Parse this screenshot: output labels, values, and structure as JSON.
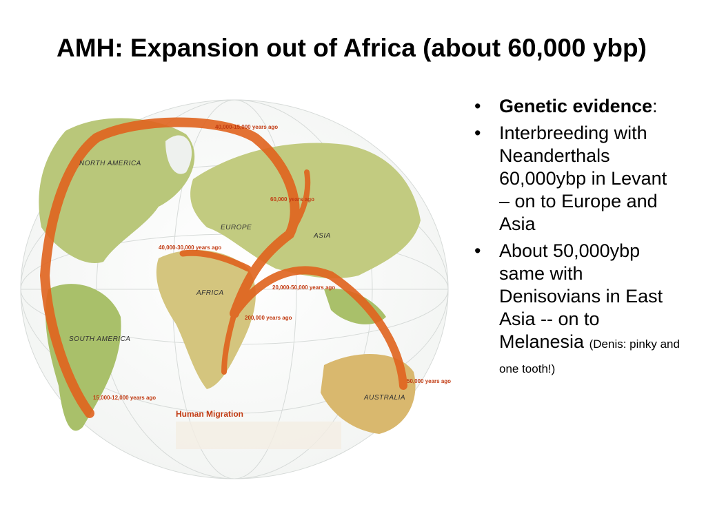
{
  "title": "AMH: Expansion out of Africa (about 60,000 ybp)",
  "bullets": [
    {
      "strong": "Genetic evidence",
      "rest": ":"
    },
    {
      "text": "Interbreeding with Neanderthals 60,000ybp in Levant – on to Europe and Asia"
    },
    {
      "text": "About 50,000ybp same with Denisovians in East Asia --  on to Melanesia",
      "note": "(Denis: pinky and one tooth!)"
    }
  ],
  "map": {
    "regions": [
      "NORTH AMERICA",
      "SOUTH AMERICA",
      "EUROPE",
      "ASIA",
      "AFRICA",
      "AUSTRALIA"
    ],
    "dates": [
      "40,000-15,000 years ago",
      "60,000 years ago",
      "40,000-30,000 years ago",
      "20,000-50,000 years ago",
      "200,000 years ago",
      "50,000 years ago",
      "15,000-12,000 years ago"
    ],
    "legend_title": "Human Migration"
  }
}
